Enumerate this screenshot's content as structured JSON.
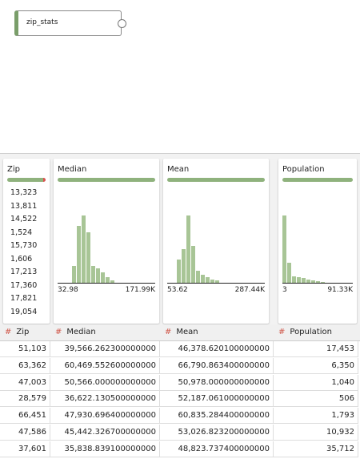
{
  "node": {
    "label": "zip_stats"
  },
  "profiles": [
    {
      "name": "Zip",
      "values": [
        "13,323",
        "13,811",
        "14,522",
        "1,524",
        "15,730",
        "1,606",
        "17,213",
        "17,360",
        "17,821",
        "19,054"
      ]
    },
    {
      "name": "Median",
      "min": "32.98",
      "max": "171.99K",
      "histogram": [
        0,
        0,
        0,
        25,
        85,
        100,
        75,
        25,
        22,
        15,
        8,
        3,
        0,
        0,
        0,
        0,
        0,
        0,
        0,
        0
      ]
    },
    {
      "name": "Mean",
      "min": "53.62",
      "max": "287.44K",
      "histogram": [
        0,
        0,
        35,
        50,
        100,
        55,
        18,
        12,
        8,
        5,
        3,
        0,
        0,
        0,
        0,
        0,
        0,
        0,
        0,
        0
      ]
    },
    {
      "name": "Population",
      "min": "3",
      "max": "91.33K",
      "histogram": [
        100,
        30,
        10,
        8,
        7,
        5,
        3,
        2,
        1,
        0,
        0,
        0,
        0,
        0,
        0
      ]
    }
  ],
  "table": {
    "type_icon": "#",
    "columns": [
      "Zip",
      "Median",
      "Mean",
      "Population"
    ],
    "rows": [
      [
        "51,103",
        "39,566.262300000000",
        "46,378.620100000000",
        "17,453"
      ],
      [
        "63,362",
        "60,469.552600000000",
        "66,790.863400000000",
        "6,350"
      ],
      [
        "47,003",
        "50,566.000000000000",
        "50,978.000000000000",
        "1,040"
      ],
      [
        "28,579",
        "36,622.130500000000",
        "52,187.061000000000",
        "506"
      ],
      [
        "66,451",
        "47,930.696400000000",
        "60,835.284400000000",
        "1,793"
      ],
      [
        "47,586",
        "45,442.326700000000",
        "53,026.823200000000",
        "10,932"
      ],
      [
        "37,601",
        "35,838.839100000000",
        "48,823.737400000000",
        "35,712"
      ]
    ]
  }
}
